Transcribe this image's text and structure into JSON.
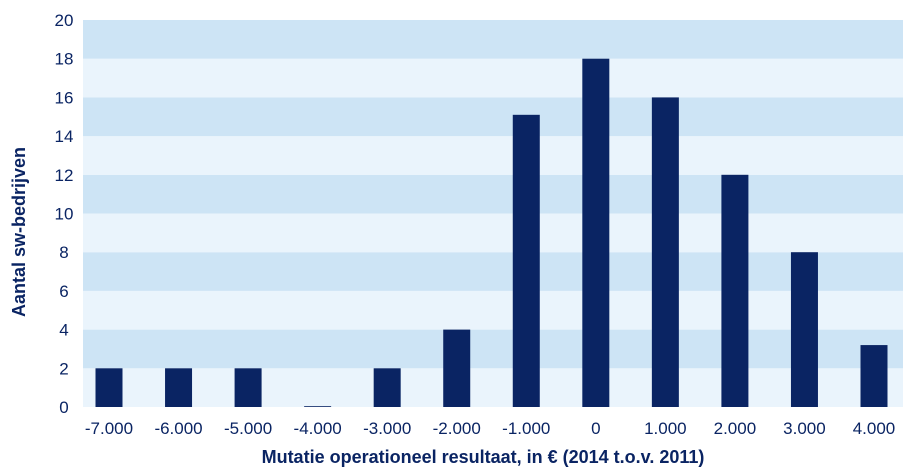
{
  "chart_data": {
    "type": "bar",
    "title": "",
    "xlabel": "Mutatie operationeel resultaat, in € (2014 t.o.v. 2011)",
    "ylabel": "Aantal sw-bedrijven",
    "categories": [
      "-7.000",
      "-6.000",
      "-5.000",
      "-4.000",
      "-3.000",
      "-2.000",
      "-1.000",
      "0",
      "1.000",
      "2.000",
      "3.000",
      "4.000"
    ],
    "values": [
      2,
      2,
      2,
      0,
      2,
      4,
      15.1,
      18,
      16,
      12,
      8,
      3.2
    ],
    "ylim": [
      0,
      20
    ],
    "yticks": [
      "0",
      "2",
      "4",
      "6",
      "8",
      "10",
      "12",
      "14",
      "16",
      "18",
      "20"
    ],
    "grid": "alternating horizontal bands",
    "colors": {
      "bar": "#0a2463",
      "band_dark": "#cde4f5",
      "band_light": "#eaf4fc",
      "text": "#0a2463"
    }
  }
}
